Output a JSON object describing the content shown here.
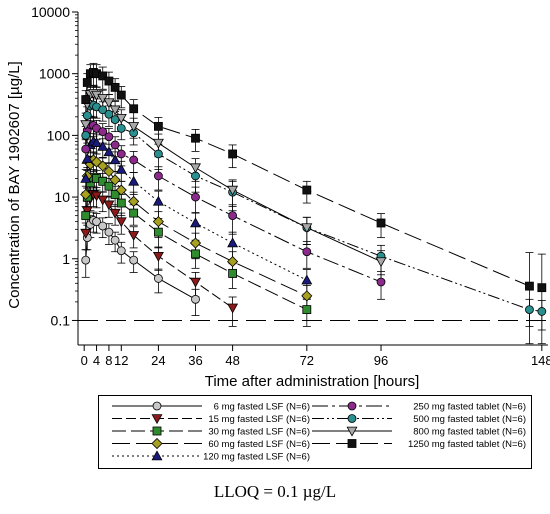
{
  "chart_data": {
    "type": "line",
    "y_scale": "log",
    "ylabel": "Concentration of BAY 1902607 [µg/L]",
    "xlabel": "Time after administration [hours]",
    "xlim": [
      -2,
      150
    ],
    "ylim": [
      0.04,
      10000
    ],
    "x_ticks": [
      0,
      4,
      8,
      12,
      24,
      36,
      48,
      72,
      96,
      148
    ],
    "y_ticks": [
      {
        "value": 0.1,
        "label": "0.1"
      },
      {
        "value": 1,
        "label": "1"
      },
      {
        "value": 10,
        "label": "10"
      },
      {
        "value": 100,
        "label": "100"
      },
      {
        "value": 1000,
        "label": "1000"
      },
      {
        "value": 10000,
        "label": "10000"
      }
    ],
    "lloq": 0.1,
    "series": [
      {
        "name": "6 mg fasted LSF (N=6)",
        "color": "#c8c8c8",
        "marker": "circle",
        "dash": "",
        "x": [
          0.5,
          1,
          2,
          3,
          4,
          6,
          8,
          10,
          12,
          16,
          24,
          36
        ],
        "y": [
          0.95,
          2.2,
          3.6,
          4.2,
          4.0,
          3.4,
          2.7,
          2.0,
          1.35,
          0.95,
          0.48,
          0.22
        ],
        "err": [
          0.45,
          0.8,
          1.4,
          1.5,
          1.4,
          1.2,
          1.0,
          0.7,
          0.5,
          0.35,
          0.2,
          0.1
        ]
      },
      {
        "name": "15 mg fasted LSF (N=6)",
        "color": "#8b1a1a",
        "marker": "triangle-down",
        "dash": "10 4",
        "x": [
          0.5,
          1,
          2,
          3,
          4,
          6,
          8,
          10,
          12,
          16,
          24,
          36,
          48
        ],
        "y": [
          2.6,
          6.0,
          9.5,
          11,
          10.5,
          9.0,
          7.5,
          5.5,
          4.0,
          2.4,
          1.1,
          0.42,
          0.16
        ],
        "err": [
          1.2,
          2.5,
          3.5,
          4,
          3.8,
          3.2,
          2.8,
          2.0,
          1.5,
          0.9,
          0.45,
          0.18,
          0.08
        ]
      },
      {
        "name": "30 mg fasted LSF (N=6)",
        "color": "#2e8b2e",
        "marker": "square",
        "dash": "14 5",
        "x": [
          0.5,
          1,
          2,
          3,
          4,
          6,
          8,
          10,
          12,
          16,
          24,
          36,
          48,
          72
        ],
        "y": [
          5,
          10,
          17,
          21,
          20,
          18,
          15,
          11,
          8,
          5.5,
          2.7,
          1.2,
          0.58,
          0.15
        ],
        "err": [
          2,
          4,
          6,
          7,
          7,
          6,
          5,
          4,
          3,
          2,
          1.2,
          0.5,
          0.25,
          0.07
        ]
      },
      {
        "name": "60 mg fasted LSF (N=6)",
        "color": "#a8a020",
        "marker": "diamond",
        "dash": "18 6",
        "x": [
          0.5,
          1,
          2,
          3,
          4,
          6,
          8,
          10,
          12,
          16,
          24,
          36,
          48,
          72
        ],
        "y": [
          11,
          22,
          34,
          40,
          37,
          32,
          26,
          19,
          13,
          8.5,
          4.0,
          1.8,
          0.9,
          0.25
        ],
        "err": [
          4,
          8,
          12,
          14,
          13,
          11,
          9,
          7,
          5,
          3.5,
          1.8,
          0.8,
          0.4,
          0.12
        ]
      },
      {
        "name": "120 mg fasted LSF (N=6)",
        "color": "#1a1a7a",
        "marker": "triangle",
        "dash": "2 3",
        "x": [
          0.5,
          1,
          2,
          3,
          4,
          6,
          8,
          10,
          12,
          16,
          24,
          36,
          48,
          72
        ],
        "y": [
          20,
          42,
          70,
          80,
          76,
          66,
          54,
          40,
          28,
          18,
          8.5,
          3.8,
          1.8,
          0.45
        ],
        "err": [
          8,
          15,
          25,
          28,
          26,
          22,
          18,
          14,
          10,
          7,
          4,
          1.8,
          0.9,
          0.22
        ]
      },
      {
        "name": "250 mg fasted tablet (N=6)",
        "color": "#8b2a8b",
        "marker": "circle",
        "dash": "16 4 3 4",
        "x": [
          0.5,
          1,
          2,
          3,
          4,
          6,
          8,
          10,
          12,
          16,
          24,
          36,
          48,
          72,
          96
        ],
        "y": [
          60,
          120,
          150,
          145,
          130,
          115,
          95,
          70,
          50,
          40,
          22,
          10,
          5,
          1.3,
          0.42
        ],
        "err": [
          25,
          45,
          55,
          50,
          45,
          40,
          35,
          25,
          18,
          15,
          9,
          4.5,
          2.5,
          0.6,
          0.2
        ]
      },
      {
        "name": "500 mg fasted tablet (N=6)",
        "color": "#2a8f8f",
        "marker": "circle",
        "dash": "12 3 2 3 2 3",
        "x": [
          0.5,
          1,
          2,
          3,
          4,
          6,
          8,
          10,
          12,
          16,
          24,
          36,
          48,
          72,
          96,
          144,
          148
        ],
        "y": [
          100,
          210,
          300,
          310,
          290,
          260,
          220,
          180,
          130,
          110,
          50,
          22,
          12,
          3.2,
          1.1,
          0.15,
          0.14
        ],
        "err": [
          40,
          80,
          110,
          110,
          100,
          90,
          80,
          65,
          45,
          40,
          22,
          10,
          6,
          1.5,
          0.55,
          0.07,
          0.07
        ]
      },
      {
        "name": "800 mg fasted tablet (N=6)",
        "color": "#a8a8a8",
        "marker": "triangle-down",
        "dash": "",
        "x": [
          0.5,
          1,
          2,
          3,
          4,
          6,
          8,
          10,
          12,
          16,
          24,
          36,
          48,
          72,
          96
        ],
        "y": [
          150,
          320,
          460,
          480,
          450,
          400,
          340,
          260,
          190,
          140,
          75,
          30,
          13,
          3.2,
          0.9
        ],
        "err": [
          60,
          120,
          170,
          170,
          160,
          140,
          120,
          95,
          70,
          50,
          30,
          12,
          6,
          1.5,
          0.45
        ]
      },
      {
        "name": "1250 mg fasted tablet (N=6)",
        "color": "#111111",
        "marker": "square",
        "dash": "18 6",
        "x": [
          0.5,
          1,
          2,
          3,
          4,
          6,
          8,
          10,
          12,
          16,
          24,
          36,
          48,
          72,
          96,
          144,
          148
        ],
        "y": [
          380,
          720,
          1000,
          1050,
          1000,
          920,
          760,
          600,
          450,
          270,
          140,
          90,
          50,
          13,
          3.8,
          0.36,
          0.34
        ],
        "err": [
          150,
          280,
          400,
          420,
          400,
          360,
          300,
          230,
          170,
          110,
          55,
          35,
          20,
          5,
          1.6,
          0.9,
          0.85
        ]
      }
    ]
  },
  "footnote": "LLOQ = 0.1 µg/L"
}
